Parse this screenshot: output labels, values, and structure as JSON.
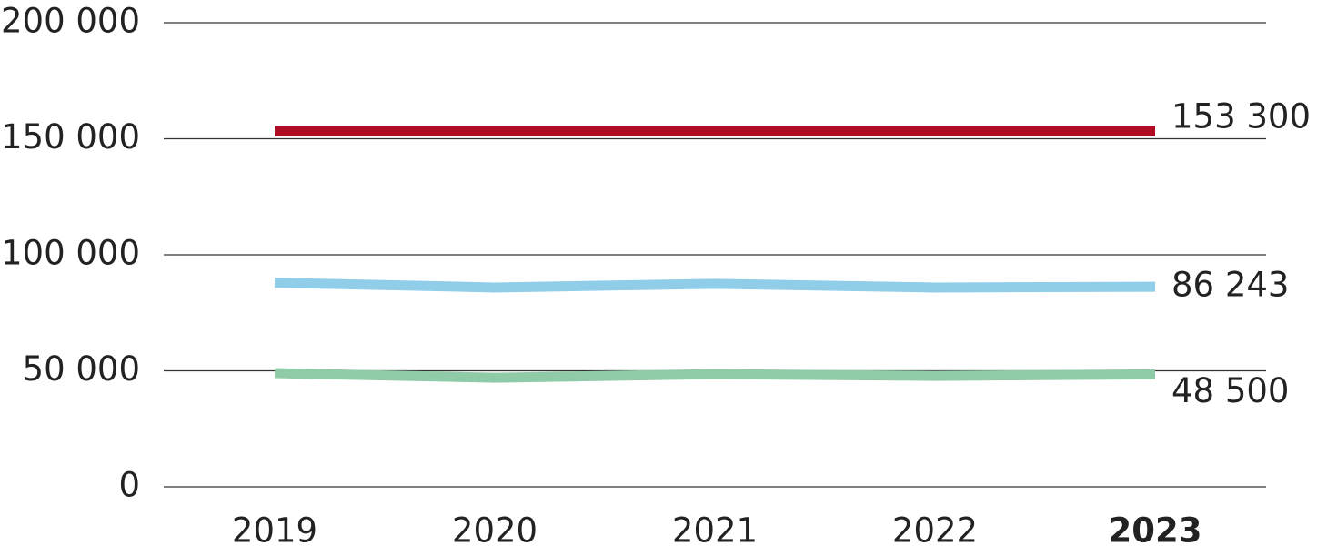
{
  "chart_data": {
    "type": "line",
    "categories": [
      "2019",
      "2020",
      "2021",
      "2022",
      "2023"
    ],
    "bold_last_category": true,
    "series": [
      {
        "color": "#b00b25",
        "values": [
          153300,
          153300,
          153300,
          153300,
          153300
        ],
        "value_labels": [
          null,
          null,
          null,
          null,
          "153 300"
        ]
      },
      {
        "color": "#8fcde9",
        "values": [
          88000,
          85900,
          87500,
          85900,
          86243
        ],
        "value_labels": [
          null,
          null,
          null,
          null,
          "86 243"
        ]
      },
      {
        "color": "#8ecba6",
        "values": [
          49000,
          47000,
          48600,
          47800,
          48500
        ],
        "value_labels": [
          null,
          null,
          null,
          null,
          "48 500"
        ]
      }
    ],
    "ylim": [
      0,
      200000
    ],
    "yticks": [
      0,
      {
        "value": 50000,
        "label": "50 000"
      },
      {
        "value": 100000,
        "label": "100 000"
      },
      {
        "value": 150000,
        "label": "150 000"
      },
      {
        "value": 200000,
        "label": "200 000"
      }
    ],
    "grid": true
  }
}
